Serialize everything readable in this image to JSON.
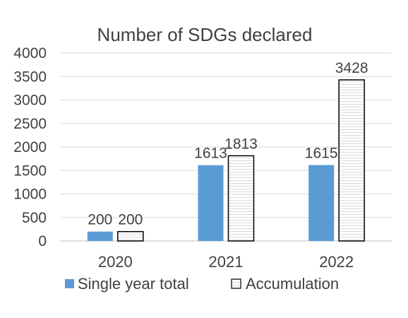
{
  "chart_data": {
    "type": "bar",
    "title": "Number of SDGs declared",
    "xlabel": "",
    "ylabel": "",
    "categories": [
      "2020",
      "2021",
      "2022"
    ],
    "series": [
      {
        "name": "Single year total",
        "values": [
          200,
          1613,
          1615
        ],
        "color": "#5b9bd5",
        "pattern": "solid"
      },
      {
        "name": "Accumulation",
        "values": [
          200,
          1813,
          3428
        ],
        "color": "#ffffff",
        "pattern": "horizontal-lines"
      }
    ],
    "ylim": [
      0,
      4000
    ],
    "yticks": [
      0,
      500,
      1000,
      1500,
      2000,
      2500,
      3000,
      3500,
      4000
    ],
    "grid": true,
    "legend_position": "bottom"
  }
}
